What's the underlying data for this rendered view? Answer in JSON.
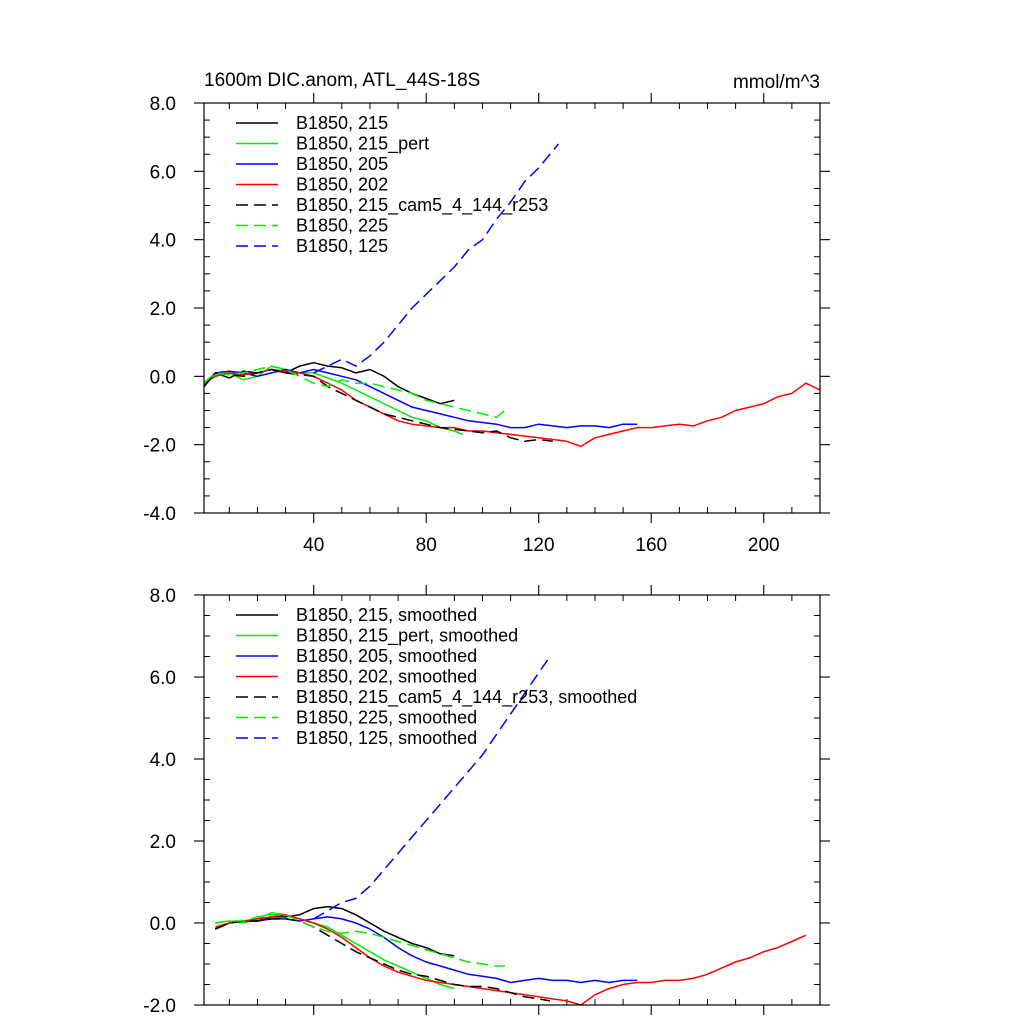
{
  "chart_data": [
    {
      "type": "line",
      "title": "1600m DIC.anom, ATL_44S-18S",
      "units": "mmol/m^3",
      "xlim": [
        1,
        220
      ],
      "ylim": [
        -4.0,
        8.0
      ],
      "xticks": [
        40,
        80,
        120,
        160,
        200
      ],
      "xtick_labels": [
        "40",
        "80",
        "120",
        "160",
        "200"
      ],
      "yticks": [
        -4,
        -2,
        0,
        2,
        4,
        6,
        8
      ],
      "ytick_labels": [
        "-4.0",
        "-2.0",
        "0.0",
        "2.0",
        "4.0",
        "6.0",
        "8.0"
      ],
      "legend_position": "top-left",
      "series": [
        {
          "name": "B1850, 215",
          "color": "#000000",
          "dash": "solid",
          "x": [
            1,
            5,
            10,
            15,
            20,
            25,
            30,
            35,
            40,
            45,
            50,
            55,
            60,
            65,
            70,
            75,
            80,
            85,
            90
          ],
          "y": [
            -0.3,
            0.1,
            -0.05,
            0.15,
            0.1,
            0.2,
            0.1,
            0.3,
            0.4,
            0.3,
            0.25,
            0.1,
            0.2,
            0.0,
            -0.3,
            -0.5,
            -0.65,
            -0.8,
            -0.7
          ]
        },
        {
          "name": "B1850, 215_pert",
          "color": "#00ee00",
          "dash": "solid",
          "x": [
            1,
            5,
            10,
            15,
            20,
            25,
            30,
            35,
            40,
            45,
            50,
            55,
            60,
            65,
            70,
            75,
            80,
            85,
            90,
            93
          ],
          "y": [
            -0.2,
            0.05,
            0.1,
            -0.1,
            0.0,
            0.3,
            0.2,
            0.1,
            0.1,
            -0.05,
            -0.2,
            -0.4,
            -0.6,
            -0.8,
            -1.0,
            -1.2,
            -1.3,
            -1.5,
            -1.6,
            -1.7
          ]
        },
        {
          "name": "B1850, 205",
          "color": "#0000ff",
          "dash": "solid",
          "x": [
            1,
            5,
            10,
            15,
            20,
            25,
            30,
            35,
            40,
            45,
            50,
            55,
            60,
            65,
            70,
            75,
            80,
            85,
            90,
            95,
            100,
            105,
            110,
            115,
            120,
            125,
            130,
            135,
            140,
            145,
            150,
            155
          ],
          "y": [
            -0.2,
            0.1,
            0.15,
            0.1,
            0.0,
            0.1,
            0.2,
            0.1,
            0.2,
            0.1,
            0.0,
            -0.1,
            -0.3,
            -0.5,
            -0.7,
            -0.9,
            -1.0,
            -1.1,
            -1.2,
            -1.3,
            -1.35,
            -1.4,
            -1.5,
            -1.5,
            -1.4,
            -1.45,
            -1.5,
            -1.45,
            -1.45,
            -1.5,
            -1.4,
            -1.4
          ]
        },
        {
          "name": "B1850, 202",
          "color": "#ff0000",
          "dash": "solid",
          "x": [
            1,
            5,
            10,
            15,
            20,
            25,
            30,
            35,
            40,
            45,
            50,
            55,
            60,
            65,
            70,
            75,
            80,
            85,
            90,
            95,
            100,
            105,
            110,
            115,
            120,
            125,
            130,
            135,
            140,
            145,
            150,
            155,
            160,
            165,
            170,
            175,
            180,
            185,
            190,
            195,
            200,
            205,
            210,
            215,
            220
          ],
          "y": [
            -0.2,
            0.0,
            0.1,
            0.05,
            0.1,
            0.2,
            0.15,
            0.1,
            0.0,
            -0.2,
            -0.4,
            -0.7,
            -0.9,
            -1.1,
            -1.3,
            -1.4,
            -1.45,
            -1.5,
            -1.5,
            -1.6,
            -1.6,
            -1.65,
            -1.7,
            -1.75,
            -1.8,
            -1.85,
            -1.9,
            -2.05,
            -1.8,
            -1.7,
            -1.6,
            -1.5,
            -1.5,
            -1.45,
            -1.4,
            -1.45,
            -1.3,
            -1.2,
            -1.0,
            -0.9,
            -0.8,
            -0.6,
            -0.5,
            -0.2,
            -0.4
          ]
        },
        {
          "name": "B1850, 215_cam5_4_144_r253",
          "color": "#000000",
          "dash": "dashed",
          "x": [
            1,
            5,
            10,
            15,
            20,
            25,
            30,
            35,
            40,
            45,
            50,
            55,
            60,
            65,
            70,
            75,
            80,
            85,
            90,
            95,
            100,
            105,
            110,
            115,
            120,
            125
          ],
          "y": [
            -0.3,
            0.1,
            0.05,
            0.0,
            0.1,
            0.2,
            0.1,
            0.05,
            0.0,
            -0.3,
            -0.5,
            -0.7,
            -0.9,
            -1.1,
            -1.2,
            -1.3,
            -1.4,
            -1.5,
            -1.55,
            -1.6,
            -1.65,
            -1.6,
            -1.8,
            -1.9,
            -1.85,
            -1.9
          ]
        },
        {
          "name": "B1850, 225",
          "color": "#00ee00",
          "dash": "dashed",
          "x": [
            1,
            5,
            10,
            15,
            20,
            25,
            30,
            35,
            40,
            45,
            50,
            55,
            60,
            65,
            70,
            75,
            80,
            85,
            90,
            95,
            100,
            105,
            108
          ],
          "y": [
            -0.2,
            0.1,
            0.05,
            0.1,
            0.2,
            0.3,
            0.2,
            0.0,
            -0.2,
            -0.3,
            -0.1,
            -0.2,
            -0.2,
            -0.3,
            -0.4,
            -0.5,
            -0.7,
            -0.8,
            -0.9,
            -1.0,
            -1.1,
            -1.2,
            -1.0
          ]
        },
        {
          "name": "B1850, 125",
          "color": "#0000ff",
          "dash": "dashed",
          "x": [
            40,
            45,
            50,
            55,
            60,
            65,
            70,
            75,
            80,
            85,
            90,
            95,
            100,
            105,
            110,
            115,
            120,
            125,
            127
          ],
          "y": [
            0.1,
            0.3,
            0.5,
            0.3,
            0.6,
            1.0,
            1.5,
            2.0,
            2.4,
            2.8,
            3.2,
            3.7,
            4.0,
            4.6,
            5.1,
            5.7,
            6.1,
            6.6,
            6.8
          ]
        }
      ]
    },
    {
      "type": "line",
      "title": "",
      "xlim": [
        1,
        220
      ],
      "ylim": [
        -2.0,
        8.0
      ],
      "xticks": [
        40,
        80,
        120,
        160,
        200
      ],
      "xtick_labels": [],
      "yticks": [
        -2,
        0,
        2,
        4,
        6,
        8
      ],
      "ytick_labels": [
        "-2.0",
        "0.0",
        "2.0",
        "4.0",
        "6.0",
        "8.0"
      ],
      "legend_position": "top-left",
      "series": [
        {
          "name": "B1850, 215, smoothed",
          "color": "#000000",
          "dash": "solid",
          "x": [
            5,
            10,
            15,
            20,
            25,
            30,
            35,
            40,
            45,
            50,
            55,
            60,
            65,
            70,
            75,
            80,
            85,
            90
          ],
          "y": [
            -0.15,
            0.0,
            0.05,
            0.05,
            0.15,
            0.15,
            0.2,
            0.35,
            0.4,
            0.35,
            0.2,
            0.0,
            -0.2,
            -0.35,
            -0.5,
            -0.6,
            -0.75,
            -0.8
          ]
        },
        {
          "name": "B1850, 215_pert, smoothed",
          "color": "#00ee00",
          "dash": "solid",
          "x": [
            5,
            10,
            15,
            20,
            25,
            30,
            35,
            40,
            45,
            50,
            55,
            60,
            65,
            70,
            75,
            80,
            85,
            90
          ],
          "y": [
            0.0,
            0.05,
            0.0,
            0.1,
            0.25,
            0.2,
            0.1,
            0.0,
            -0.1,
            -0.3,
            -0.5,
            -0.7,
            -0.9,
            -1.05,
            -1.2,
            -1.35,
            -1.5,
            -1.6
          ]
        },
        {
          "name": "B1850, 205, smoothed",
          "color": "#0000ff",
          "dash": "solid",
          "x": [
            5,
            10,
            15,
            20,
            25,
            30,
            35,
            40,
            45,
            50,
            55,
            60,
            65,
            70,
            75,
            80,
            85,
            90,
            95,
            100,
            105,
            110,
            115,
            120,
            125,
            130,
            135,
            140,
            145,
            150,
            155
          ],
          "y": [
            -0.15,
            0.0,
            0.05,
            0.05,
            0.1,
            0.1,
            0.05,
            0.1,
            0.15,
            0.1,
            0.0,
            -0.15,
            -0.35,
            -0.6,
            -0.8,
            -0.95,
            -1.05,
            -1.15,
            -1.25,
            -1.3,
            -1.35,
            -1.45,
            -1.4,
            -1.35,
            -1.4,
            -1.4,
            -1.45,
            -1.4,
            -1.45,
            -1.4,
            -1.4
          ]
        },
        {
          "name": "B1850, 202, smoothed",
          "color": "#ff0000",
          "dash": "solid",
          "x": [
            5,
            10,
            15,
            20,
            25,
            30,
            35,
            40,
            45,
            50,
            55,
            60,
            65,
            70,
            75,
            80,
            85,
            90,
            95,
            100,
            105,
            110,
            115,
            120,
            125,
            130,
            135,
            140,
            145,
            150,
            155,
            160,
            165,
            170,
            175,
            180,
            185,
            190,
            195,
            200,
            205,
            210,
            215
          ],
          "y": [
            -0.1,
            0.0,
            0.05,
            0.1,
            0.15,
            0.2,
            0.1,
            0.0,
            -0.15,
            -0.35,
            -0.6,
            -0.85,
            -1.05,
            -1.2,
            -1.3,
            -1.4,
            -1.45,
            -1.5,
            -1.55,
            -1.6,
            -1.65,
            -1.7,
            -1.75,
            -1.8,
            -1.85,
            -1.9,
            -2.0,
            -1.75,
            -1.6,
            -1.5,
            -1.45,
            -1.45,
            -1.4,
            -1.4,
            -1.35,
            -1.25,
            -1.1,
            -0.95,
            -0.85,
            -0.7,
            -0.6,
            -0.45,
            -0.3
          ]
        },
        {
          "name": "B1850, 215_cam5_4_144_r253, smoothed",
          "color": "#000000",
          "dash": "dashed",
          "x": [
            5,
            10,
            15,
            20,
            25,
            30,
            35,
            40,
            45,
            50,
            55,
            60,
            65,
            70,
            75,
            80,
            85,
            90,
            95,
            100,
            105,
            110,
            115,
            120,
            124
          ],
          "y": [
            -0.15,
            0.0,
            0.05,
            0.05,
            0.1,
            0.1,
            0.05,
            -0.1,
            -0.3,
            -0.5,
            -0.7,
            -0.85,
            -1.0,
            -1.15,
            -1.25,
            -1.3,
            -1.4,
            -1.5,
            -1.55,
            -1.55,
            -1.6,
            -1.7,
            -1.8,
            -1.85,
            -1.9
          ]
        },
        {
          "name": "B1850, 225, smoothed",
          "color": "#00ee00",
          "dash": "dashed",
          "x": [
            5,
            10,
            15,
            20,
            25,
            30,
            35,
            40,
            45,
            50,
            55,
            60,
            65,
            70,
            75,
            80,
            85,
            90,
            95,
            100,
            105,
            108
          ],
          "y": [
            0.0,
            0.05,
            0.05,
            0.15,
            0.2,
            0.2,
            0.05,
            -0.1,
            -0.2,
            -0.25,
            -0.2,
            -0.25,
            -0.35,
            -0.45,
            -0.55,
            -0.65,
            -0.75,
            -0.85,
            -0.95,
            -1.0,
            -1.05,
            -1.05
          ]
        },
        {
          "name": "B1850, 125, smoothed",
          "color": "#0000ff",
          "dash": "dashed",
          "x": [
            40,
            45,
            50,
            55,
            60,
            65,
            70,
            75,
            80,
            85,
            90,
            95,
            100,
            105,
            110,
            115,
            120,
            124
          ],
          "y": [
            0.1,
            0.3,
            0.5,
            0.6,
            0.9,
            1.3,
            1.7,
            2.1,
            2.5,
            2.9,
            3.3,
            3.7,
            4.1,
            4.6,
            5.1,
            5.6,
            6.1,
            6.5
          ]
        }
      ]
    }
  ]
}
